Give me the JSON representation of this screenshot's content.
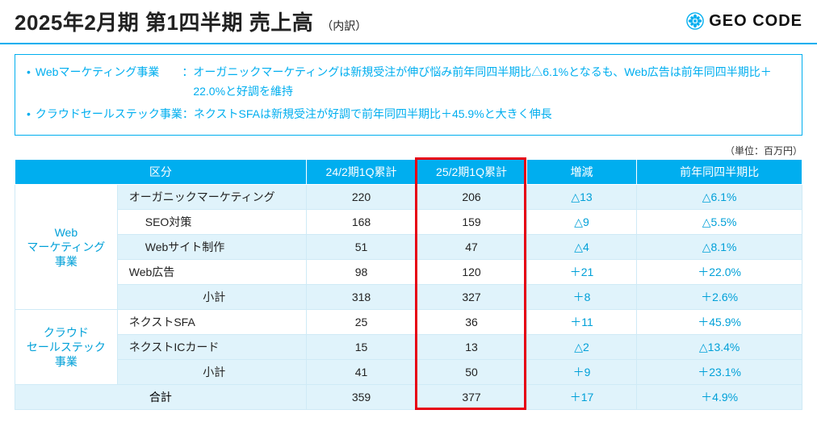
{
  "header": {
    "title": "2025年2月期 第1四半期 売上高",
    "subtitle": "（内訳）",
    "logo_text": "GEO CODE"
  },
  "callout": {
    "items": [
      {
        "label": "Webマーケティング事業",
        "sep": "　　：",
        "text": "オーガニックマーケティングは新規受注が伸び悩み前年同四半期比△6.1%となるも、Web広告は前年同四半期比＋22.0%と好調を維持"
      },
      {
        "label": "クラウドセールステック事業",
        "sep": "：",
        "text": "ネクストSFAは新規受注が好調で前年同四半期比＋45.9%と大きく伸長"
      }
    ]
  },
  "unit_label": "（単位：百万円）",
  "table": {
    "columns": [
      "区分",
      "24/2期1Q累計",
      "25/2期1Q累計",
      "増減",
      "前年同四半期比"
    ],
    "groups": [
      {
        "category": "Web\nマーケティング\n事業",
        "rows": [
          {
            "item": "オーガニックマーケティング",
            "indent": 0,
            "v1": "220",
            "v2": "206",
            "v3": "△13",
            "v4": "△6.1%",
            "alt": true
          },
          {
            "item": "SEO対策",
            "indent": 1,
            "v1": "168",
            "v2": "159",
            "v3": "△9",
            "v4": "△5.5%",
            "alt": false
          },
          {
            "item": "Webサイト制作",
            "indent": 1,
            "v1": "51",
            "v2": "47",
            "v3": "△4",
            "v4": "△8.1%",
            "alt": true
          },
          {
            "item": "Web広告",
            "indent": 0,
            "v1": "98",
            "v2": "120",
            "v3": "＋21",
            "v4": "＋22.0%",
            "alt": false
          },
          {
            "item": "小計",
            "indent": 0,
            "center": true,
            "v1": "318",
            "v2": "327",
            "v3": "＋8",
            "v4": "＋2.6%",
            "subtotal": true
          }
        ]
      },
      {
        "category": "クラウド\nセールステック\n事業",
        "rows": [
          {
            "item": "ネクストSFA",
            "indent": 0,
            "v1": "25",
            "v2": "36",
            "v3": "＋11",
            "v4": "＋45.9%",
            "alt": false
          },
          {
            "item": "ネクストICカード",
            "indent": 0,
            "v1": "15",
            "v2": "13",
            "v3": "△2",
            "v4": "△13.4%",
            "alt": true
          },
          {
            "item": "小計",
            "indent": 0,
            "center": true,
            "v1": "41",
            "v2": "50",
            "v3": "＋9",
            "v4": "＋23.1%",
            "subtotal": true
          }
        ]
      }
    ],
    "grand": {
      "item": "合計",
      "v1": "359",
      "v2": "377",
      "v3": "＋17",
      "v4": "＋4.9%"
    }
  },
  "highlight": {
    "col_index": 3
  },
  "colors": {
    "brand_blue": "#00aeef",
    "text_blue": "#00a0d8",
    "row_alt": "#e0f3fb",
    "border_light": "#cfeaf6",
    "highlight_red": "#e60012"
  }
}
